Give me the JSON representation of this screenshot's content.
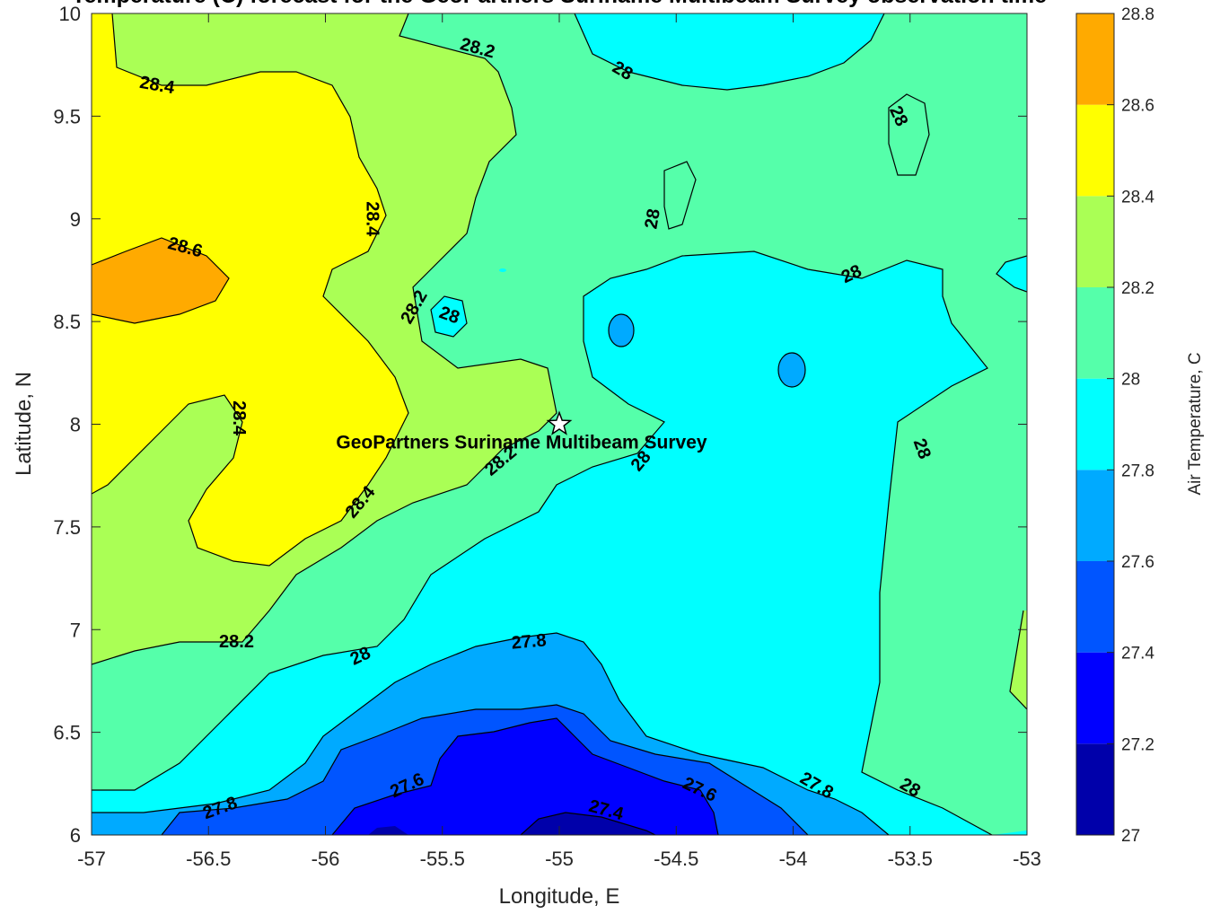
{
  "chart_data": {
    "type": "contour",
    "title": "Temperature (C) forecast for the GeoPartners Suriname Multibeam Survey observation time",
    "xlabel": "Longitude, E",
    "ylabel": "Latitude, N",
    "xlim": [
      -57,
      -53
    ],
    "ylim": [
      6,
      10
    ],
    "xticks": [
      -57,
      -56.5,
      -56,
      -55.5,
      -55,
      -54.5,
      -54,
      -53.5,
      -53
    ],
    "yticks": [
      6,
      6.5,
      7,
      7.5,
      8,
      8.5,
      9,
      9.5,
      10
    ],
    "xtick_labels": [
      "-57",
      "-56.5",
      "-56",
      "-55.5",
      "-55",
      "-54.5",
      "-54",
      "-53.5",
      "-53"
    ],
    "ytick_labels": [
      "6",
      "6.5",
      "7",
      "7.5",
      "8",
      "8.5",
      "9",
      "9.5",
      "10"
    ],
    "colorbar": {
      "label": "Air Temperature, C",
      "levels": [
        27,
        27.2,
        27.4,
        27.6,
        27.8,
        28,
        28.2,
        28.4,
        28.6,
        28.8
      ],
      "level_labels": [
        "27",
        "27.2",
        "27.4",
        "27.6",
        "27.8",
        "28",
        "28.2",
        "28.4",
        "28.6",
        "28.8"
      ],
      "colors": [
        "#0000aa",
        "#0000ff",
        "#0055ff",
        "#00aaff",
        "#00ffff",
        "#55ffaa",
        "#aaff55",
        "#ffff00",
        "#ffaa00",
        "#ff5500"
      ]
    },
    "grid": false,
    "annotation": {
      "text": "GeoPartners Suriname Multibeam Survey",
      "lon": -55,
      "lat": 8,
      "marker": "star"
    },
    "contour_labels": [
      {
        "text": "28.2",
        "lon": -55.35,
        "lat": 9.83,
        "angle": 15
      },
      {
        "text": "28",
        "lon": -54.73,
        "lat": 9.72,
        "angle": 30
      },
      {
        "text": "28.4",
        "lon": -56.72,
        "lat": 9.65,
        "angle": 10
      },
      {
        "text": "28",
        "lon": -53.55,
        "lat": 9.5,
        "angle": 65
      },
      {
        "text": "28.4",
        "lon": -55.8,
        "lat": 9.0,
        "angle": 90
      },
      {
        "text": "28",
        "lon": -54.6,
        "lat": 9.0,
        "angle": -80
      },
      {
        "text": "28.6",
        "lon": -56.6,
        "lat": 8.86,
        "angle": 15
      },
      {
        "text": "28",
        "lon": -53.75,
        "lat": 8.73,
        "angle": -25
      },
      {
        "text": "28.2",
        "lon": -55.62,
        "lat": 8.57,
        "angle": -60
      },
      {
        "text": "28",
        "lon": -55.47,
        "lat": 8.53,
        "angle": 20
      },
      {
        "text": "28.4",
        "lon": -56.37,
        "lat": 8.03,
        "angle": 90
      },
      {
        "text": "28",
        "lon": -53.45,
        "lat": 7.88,
        "angle": 70
      },
      {
        "text": "28.2",
        "lon": -55.25,
        "lat": 7.82,
        "angle": -40
      },
      {
        "text": "28",
        "lon": -54.65,
        "lat": 7.82,
        "angle": -50
      },
      {
        "text": "28.4",
        "lon": -55.85,
        "lat": 7.62,
        "angle": -50
      },
      {
        "text": "28.2",
        "lon": -56.38,
        "lat": 6.94,
        "angle": 0
      },
      {
        "text": "28",
        "lon": -55.85,
        "lat": 6.87,
        "angle": -25
      },
      {
        "text": "27.8",
        "lon": -55.13,
        "lat": 6.94,
        "angle": -5
      },
      {
        "text": "27.6",
        "lon": -55.65,
        "lat": 6.24,
        "angle": -25
      },
      {
        "text": "27.6",
        "lon": -54.4,
        "lat": 6.22,
        "angle": 25
      },
      {
        "text": "27.8",
        "lon": -53.9,
        "lat": 6.24,
        "angle": 30
      },
      {
        "text": "28",
        "lon": -53.5,
        "lat": 6.23,
        "angle": 30
      },
      {
        "text": "27.8",
        "lon": -56.45,
        "lat": 6.13,
        "angle": -20
      },
      {
        "text": "27.4",
        "lon": -54.8,
        "lat": 6.12,
        "angle": 15
      }
    ]
  }
}
